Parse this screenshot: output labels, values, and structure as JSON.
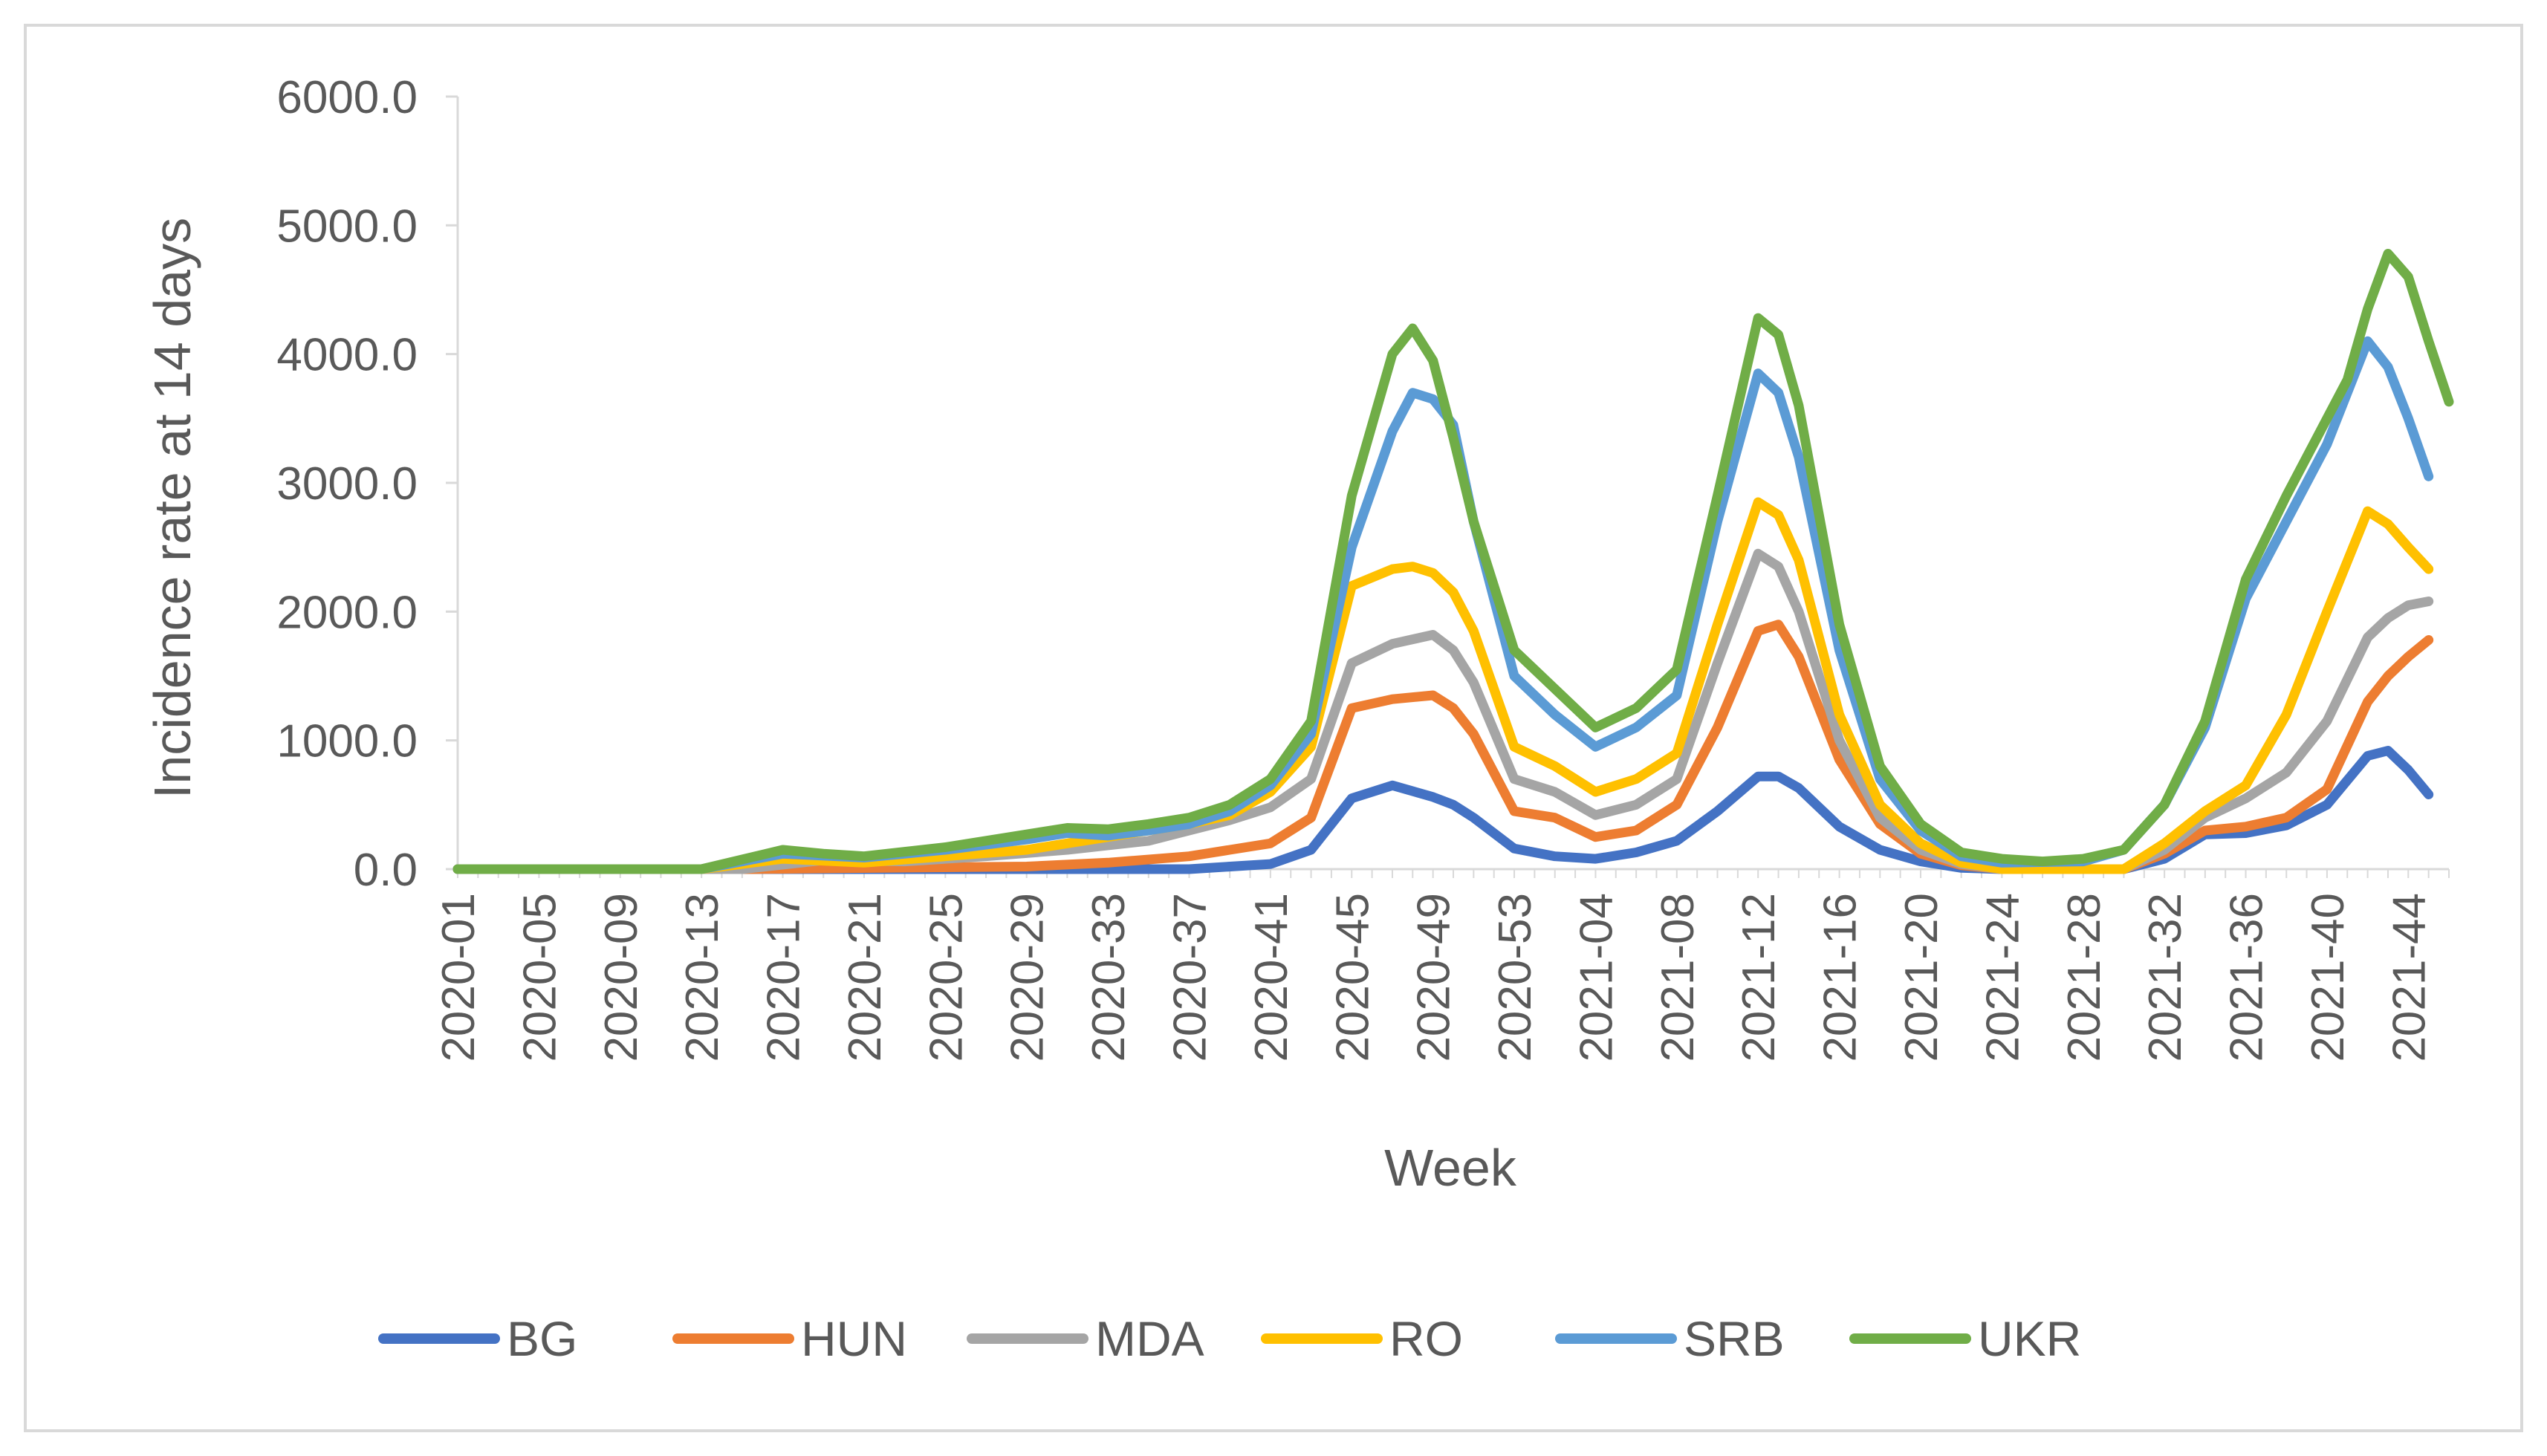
{
  "chart_data": {
    "type": "line",
    "title": "",
    "xlabel": "Week",
    "ylabel": "Incidence rate at 14 days",
    "ylim": [
      0,
      6000
    ],
    "yticks": [
      "0.0",
      "1000.0",
      "2000.0",
      "3000.0",
      "4000.0",
      "5000.0",
      "6000.0"
    ],
    "grid": false,
    "legend": "bottom",
    "x_tick_labels": [
      "2020-01",
      "2020-05",
      "2020-09",
      "2020-13",
      "2020-17",
      "2020-21",
      "2020-25",
      "2020-29",
      "2020-33",
      "2020-37",
      "2020-41",
      "2020-45",
      "2020-49",
      "2020-53",
      "2021-04",
      "2021-08",
      "2021-12",
      "2021-16",
      "2021-20",
      "2021-24",
      "2021-28",
      "2021-32",
      "2021-36",
      "2021-40",
      "2021-44"
    ],
    "x_week_index": [
      0,
      4,
      8,
      12,
      16,
      20,
      24,
      28,
      32,
      36,
      40,
      44,
      48,
      52,
      56,
      60,
      64,
      68,
      72,
      76,
      80,
      84,
      88,
      92,
      96
    ],
    "x_count": 99,
    "series": [
      {
        "name": "BG",
        "color": "#4472C4",
        "points": [
          [
            0,
            0
          ],
          [
            36,
            0
          ],
          [
            40,
            40
          ],
          [
            42,
            150
          ],
          [
            44,
            550
          ],
          [
            46,
            650
          ],
          [
            48,
            560
          ],
          [
            49,
            500
          ],
          [
            50,
            400
          ],
          [
            52,
            160
          ],
          [
            54,
            100
          ],
          [
            56,
            80
          ],
          [
            58,
            130
          ],
          [
            60,
            220
          ],
          [
            62,
            450
          ],
          [
            64,
            720
          ],
          [
            65,
            720
          ],
          [
            66,
            630
          ],
          [
            68,
            330
          ],
          [
            70,
            150
          ],
          [
            72,
            60
          ],
          [
            74,
            10
          ],
          [
            76,
            0
          ],
          [
            82,
            0
          ],
          [
            84,
            80
          ],
          [
            86,
            270
          ],
          [
            88,
            280
          ],
          [
            90,
            340
          ],
          [
            92,
            500
          ],
          [
            94,
            880
          ],
          [
            95,
            920
          ],
          [
            96,
            770
          ],
          [
            97,
            580
          ]
        ]
      },
      {
        "name": "HUN",
        "color": "#ED7D31",
        "points": [
          [
            0,
            0
          ],
          [
            14,
            0
          ],
          [
            28,
            20
          ],
          [
            32,
            50
          ],
          [
            36,
            100
          ],
          [
            38,
            150
          ],
          [
            40,
            200
          ],
          [
            42,
            400
          ],
          [
            44,
            1250
          ],
          [
            46,
            1320
          ],
          [
            48,
            1350
          ],
          [
            49,
            1250
          ],
          [
            50,
            1050
          ],
          [
            52,
            450
          ],
          [
            54,
            400
          ],
          [
            56,
            250
          ],
          [
            58,
            300
          ],
          [
            60,
            500
          ],
          [
            62,
            1100
          ],
          [
            64,
            1850
          ],
          [
            65,
            1900
          ],
          [
            66,
            1650
          ],
          [
            68,
            850
          ],
          [
            70,
            350
          ],
          [
            72,
            120
          ],
          [
            74,
            30
          ],
          [
            76,
            0
          ],
          [
            82,
            0
          ],
          [
            84,
            120
          ],
          [
            86,
            300
          ],
          [
            88,
            330
          ],
          [
            90,
            400
          ],
          [
            92,
            620
          ],
          [
            94,
            1300
          ],
          [
            95,
            1500
          ],
          [
            96,
            1650
          ],
          [
            97,
            1780
          ]
        ]
      },
      {
        "name": "MDA",
        "color": "#A5A5A5",
        "points": [
          [
            0,
            0
          ],
          [
            14,
            0
          ],
          [
            18,
            70
          ],
          [
            22,
            60
          ],
          [
            26,
            100
          ],
          [
            30,
            150
          ],
          [
            34,
            220
          ],
          [
            36,
            300
          ],
          [
            38,
            380
          ],
          [
            40,
            480
          ],
          [
            42,
            700
          ],
          [
            44,
            1600
          ],
          [
            46,
            1750
          ],
          [
            48,
            1820
          ],
          [
            49,
            1700
          ],
          [
            50,
            1450
          ],
          [
            52,
            700
          ],
          [
            54,
            600
          ],
          [
            56,
            420
          ],
          [
            58,
            500
          ],
          [
            60,
            700
          ],
          [
            62,
            1600
          ],
          [
            64,
            2450
          ],
          [
            65,
            2350
          ],
          [
            66,
            2000
          ],
          [
            68,
            1000
          ],
          [
            70,
            400
          ],
          [
            72,
            150
          ],
          [
            74,
            40
          ],
          [
            76,
            0
          ],
          [
            82,
            0
          ],
          [
            84,
            150
          ],
          [
            86,
            400
          ],
          [
            88,
            550
          ],
          [
            90,
            750
          ],
          [
            92,
            1150
          ],
          [
            94,
            1800
          ],
          [
            95,
            1950
          ],
          [
            96,
            2050
          ],
          [
            97,
            2080
          ]
        ]
      },
      {
        "name": "RO",
        "color": "#FFC000",
        "points": [
          [
            0,
            0
          ],
          [
            12,
            0
          ],
          [
            16,
            80
          ],
          [
            20,
            50
          ],
          [
            24,
            100
          ],
          [
            28,
            150
          ],
          [
            30,
            200
          ],
          [
            32,
            250
          ],
          [
            34,
            300
          ],
          [
            36,
            350
          ],
          [
            38,
            420
          ],
          [
            40,
            600
          ],
          [
            42,
            950
          ],
          [
            44,
            2200
          ],
          [
            46,
            2330
          ],
          [
            47,
            2350
          ],
          [
            48,
            2300
          ],
          [
            49,
            2150
          ],
          [
            50,
            1850
          ],
          [
            52,
            950
          ],
          [
            54,
            800
          ],
          [
            56,
            600
          ],
          [
            58,
            700
          ],
          [
            60,
            900
          ],
          [
            62,
            1900
          ],
          [
            64,
            2850
          ],
          [
            65,
            2750
          ],
          [
            66,
            2400
          ],
          [
            68,
            1200
          ],
          [
            70,
            500
          ],
          [
            72,
            200
          ],
          [
            74,
            50
          ],
          [
            76,
            0
          ],
          [
            82,
            0
          ],
          [
            84,
            200
          ],
          [
            86,
            450
          ],
          [
            88,
            650
          ],
          [
            90,
            1200
          ],
          [
            92,
            2000
          ],
          [
            94,
            2780
          ],
          [
            95,
            2680
          ],
          [
            96,
            2500
          ],
          [
            97,
            2330
          ]
        ]
      },
      {
        "name": "SRB",
        "color": "#5B9BD5",
        "points": [
          [
            0,
            0
          ],
          [
            12,
            0
          ],
          [
            16,
            120
          ],
          [
            20,
            90
          ],
          [
            24,
            150
          ],
          [
            28,
            230
          ],
          [
            30,
            280
          ],
          [
            32,
            260
          ],
          [
            34,
            300
          ],
          [
            36,
            350
          ],
          [
            38,
            450
          ],
          [
            40,
            650
          ],
          [
            42,
            1050
          ],
          [
            44,
            2500
          ],
          [
            46,
            3400
          ],
          [
            47,
            3700
          ],
          [
            48,
            3650
          ],
          [
            49,
            3450
          ],
          [
            50,
            2700
          ],
          [
            52,
            1500
          ],
          [
            54,
            1200
          ],
          [
            56,
            950
          ],
          [
            58,
            1100
          ],
          [
            60,
            1350
          ],
          [
            62,
            2700
          ],
          [
            64,
            3850
          ],
          [
            65,
            3700
          ],
          [
            66,
            3200
          ],
          [
            68,
            1700
          ],
          [
            70,
            700
          ],
          [
            72,
            300
          ],
          [
            74,
            100
          ],
          [
            76,
            50
          ],
          [
            80,
            60
          ],
          [
            82,
            150
          ],
          [
            84,
            500
          ],
          [
            86,
            1100
          ],
          [
            88,
            2100
          ],
          [
            90,
            2700
          ],
          [
            92,
            3300
          ],
          [
            94,
            4100
          ],
          [
            95,
            3900
          ],
          [
            96,
            3500
          ],
          [
            97,
            3050
          ]
        ]
      },
      {
        "name": "UKR",
        "color": "#70AD47",
        "points": [
          [
            0,
            0
          ],
          [
            12,
            0
          ],
          [
            16,
            150
          ],
          [
            18,
            120
          ],
          [
            20,
            100
          ],
          [
            24,
            170
          ],
          [
            28,
            270
          ],
          [
            30,
            320
          ],
          [
            32,
            310
          ],
          [
            34,
            350
          ],
          [
            36,
            400
          ],
          [
            38,
            500
          ],
          [
            40,
            700
          ],
          [
            42,
            1150
          ],
          [
            44,
            2900
          ],
          [
            46,
            4000
          ],
          [
            47,
            4200
          ],
          [
            48,
            3950
          ],
          [
            49,
            3350
          ],
          [
            50,
            2700
          ],
          [
            52,
            1700
          ],
          [
            54,
            1400
          ],
          [
            56,
            1100
          ],
          [
            58,
            1250
          ],
          [
            60,
            1550
          ],
          [
            62,
            2900
          ],
          [
            64,
            4280
          ],
          [
            65,
            4150
          ],
          [
            66,
            3600
          ],
          [
            68,
            1900
          ],
          [
            70,
            800
          ],
          [
            72,
            350
          ],
          [
            74,
            130
          ],
          [
            76,
            80
          ],
          [
            78,
            60
          ],
          [
            80,
            80
          ],
          [
            82,
            150
          ],
          [
            84,
            500
          ],
          [
            86,
            1150
          ],
          [
            88,
            2250
          ],
          [
            90,
            2900
          ],
          [
            92,
            3500
          ],
          [
            93,
            3800
          ],
          [
            94,
            4350
          ],
          [
            95,
            4780
          ],
          [
            96,
            4600
          ],
          [
            97,
            4100
          ],
          [
            98,
            3630
          ]
        ]
      }
    ]
  }
}
